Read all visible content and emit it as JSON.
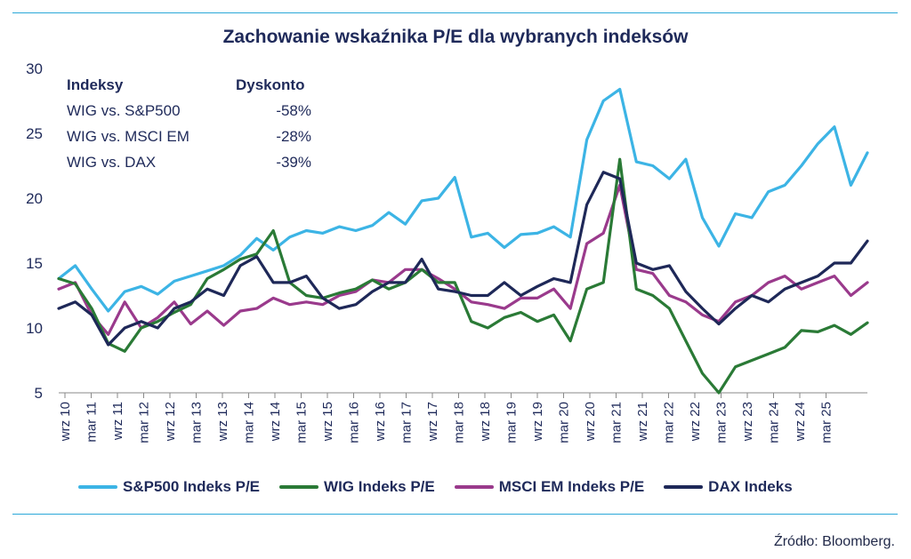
{
  "chart_data": {
    "type": "line",
    "title": "Zachowanie wskaźnika P/E dla wybranych indeksów",
    "ylim": [
      5,
      30
    ],
    "yticks": [
      5,
      10,
      15,
      20,
      25,
      30
    ],
    "xticks": [
      "wrz 10",
      "mar 11",
      "wrz 11",
      "mar 12",
      "wrz 12",
      "mar 13",
      "wrz 13",
      "mar 14",
      "wrz 14",
      "mar 15",
      "wrz 15",
      "mar 16",
      "wrz 16",
      "mar 17",
      "wrz 17",
      "mar 18",
      "wrz 18",
      "mar 19",
      "wrz 19",
      "mar 20",
      "wrz 20",
      "mar 21",
      "wrz 21",
      "mar 22",
      "wrz 22",
      "mar 23",
      "wrz 23",
      "mar 24",
      "wrz 24",
      "mar 25"
    ],
    "x_start": "2010-09",
    "x_step_months": 3,
    "grid": false,
    "legend_position": "bottom",
    "series": [
      {
        "name": "S&P500 Indeks P/E",
        "color": "#3cb4e5",
        "values": [
          13.8,
          14.8,
          13.0,
          11.3,
          12.8,
          13.2,
          12.6,
          13.6,
          14.0,
          14.4,
          14.8,
          15.6,
          16.9,
          16.0,
          17.0,
          17.5,
          17.3,
          17.8,
          17.5,
          17.9,
          18.9,
          18.0,
          19.8,
          20.0,
          21.6,
          17.0,
          17.3,
          16.2,
          17.2,
          17.3,
          17.8,
          17.0,
          24.5,
          27.5,
          28.4,
          22.8,
          22.5,
          21.5,
          23.0,
          18.5,
          16.3,
          18.8,
          18.5,
          20.5,
          21.0,
          22.5,
          24.2,
          25.5,
          21.0,
          23.5
        ]
      },
      {
        "name": "WIG Indeks P/E",
        "color": "#2a7a36",
        "values": [
          13.8,
          13.4,
          11.5,
          8.8,
          8.2,
          10.0,
          10.5,
          11.2,
          11.8,
          13.8,
          14.5,
          15.3,
          15.7,
          17.5,
          13.5,
          12.5,
          12.3,
          12.7,
          13.0,
          13.7,
          13.0,
          13.5,
          14.5,
          13.5,
          13.5,
          10.5,
          10.0,
          10.8,
          11.2,
          10.5,
          11.0,
          9.0,
          13.0,
          13.5,
          23.0,
          13.0,
          12.5,
          11.5,
          9.0,
          6.5,
          5.0,
          7.0,
          7.5,
          8.0,
          8.5,
          9.8,
          9.7,
          10.2,
          9.5,
          10.4
        ]
      },
      {
        "name": "MSCI EM Indeks P/E",
        "color": "#9a3a8c",
        "values": [
          13.0,
          13.5,
          11.0,
          9.5,
          12.0,
          10.0,
          10.8,
          12.0,
          10.3,
          11.3,
          10.2,
          11.3,
          11.5,
          12.3,
          11.8,
          12.0,
          11.8,
          12.5,
          12.8,
          13.7,
          13.5,
          14.5,
          14.5,
          13.8,
          13.0,
          12.0,
          11.8,
          11.5,
          12.3,
          12.3,
          13.0,
          11.5,
          16.5,
          17.3,
          21.0,
          14.5,
          14.2,
          12.5,
          12.0,
          11.0,
          10.5,
          12.0,
          12.5,
          13.5,
          14.0,
          13.0,
          13.5,
          14.0,
          12.5,
          13.5
        ]
      },
      {
        "name": "DAX Indeks",
        "color": "#1e2858",
        "values": [
          11.5,
          12.0,
          11.0,
          8.7,
          10.0,
          10.5,
          10.0,
          11.5,
          12.0,
          13.0,
          12.5,
          14.8,
          15.5,
          13.5,
          13.5,
          14.0,
          12.3,
          11.5,
          11.8,
          12.8,
          13.5,
          13.5,
          15.3,
          13.0,
          12.8,
          12.5,
          12.5,
          13.5,
          12.5,
          13.2,
          13.8,
          13.5,
          19.5,
          22.0,
          21.5,
          15.0,
          14.5,
          14.8,
          12.8,
          11.5,
          10.3,
          11.5,
          12.5,
          12.0,
          13.0,
          13.5,
          14.0,
          15.0,
          15.0,
          16.7
        ]
      }
    ]
  },
  "table": {
    "header": {
      "col1": "Indeksy",
      "col2": "Dyskonto"
    },
    "rows": [
      {
        "label": "WIG vs. S&P500",
        "value": "-58%"
      },
      {
        "label": "WIG vs. MSCI EM",
        "value": "-28%"
      },
      {
        "label": "WIG vs. DAX",
        "value": "-39%"
      }
    ]
  },
  "source": "Źródło: Bloomberg."
}
